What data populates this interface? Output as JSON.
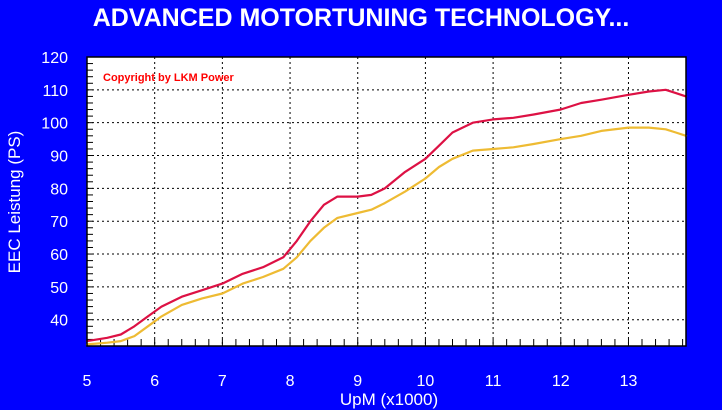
{
  "chart_data": {
    "type": "line",
    "title": "ADVANCED MOTORTUNING TECHNOLOGY...",
    "annotation": "Copyright by LKM Power",
    "xlabel": "UpM (x1000)",
    "ylabel": "EEC Leistung (PS)",
    "xlim": [
      5,
      13.85
    ],
    "ylim": [
      32,
      120
    ],
    "x_ticks": [
      5,
      6,
      7,
      8,
      9,
      10,
      11,
      12,
      13
    ],
    "y_ticks": [
      40,
      50,
      60,
      70,
      80,
      90,
      100,
      110,
      120
    ],
    "grid": true,
    "background": "#FFFFFF",
    "series": [
      {
        "color": "#DD1144",
        "points": [
          [
            5.0,
            33.5
          ],
          [
            5.3,
            34.5
          ],
          [
            5.5,
            35.5
          ],
          [
            5.7,
            38.0
          ],
          [
            5.9,
            41.0
          ],
          [
            6.1,
            44.0
          ],
          [
            6.4,
            47.0
          ],
          [
            6.7,
            49.0
          ],
          [
            7.0,
            51.0
          ],
          [
            7.3,
            54.0
          ],
          [
            7.6,
            56.0
          ],
          [
            7.9,
            59.0
          ],
          [
            8.1,
            64.0
          ],
          [
            8.3,
            70.0
          ],
          [
            8.5,
            75.0
          ],
          [
            8.7,
            77.5
          ],
          [
            9.0,
            77.5
          ],
          [
            9.2,
            78.0
          ],
          [
            9.4,
            80.0
          ],
          [
            9.7,
            85.0
          ],
          [
            10.0,
            89.0
          ],
          [
            10.2,
            93.0
          ],
          [
            10.4,
            97.0
          ],
          [
            10.7,
            100.0
          ],
          [
            11.0,
            101.0
          ],
          [
            11.3,
            101.5
          ],
          [
            11.6,
            102.5
          ],
          [
            12.0,
            104.0
          ],
          [
            12.3,
            106.0
          ],
          [
            12.6,
            107.0
          ],
          [
            13.0,
            108.5
          ],
          [
            13.3,
            109.5
          ],
          [
            13.55,
            110.0
          ],
          [
            13.7,
            109.0
          ],
          [
            13.85,
            108.0
          ]
        ]
      },
      {
        "color": "#EEBB33",
        "points": [
          [
            5.0,
            32.5
          ],
          [
            5.3,
            33.0
          ],
          [
            5.5,
            33.5
          ],
          [
            5.7,
            35.0
          ],
          [
            5.9,
            38.0
          ],
          [
            6.1,
            41.0
          ],
          [
            6.4,
            44.5
          ],
          [
            6.7,
            46.5
          ],
          [
            7.0,
            48.0
          ],
          [
            7.3,
            51.0
          ],
          [
            7.6,
            53.0
          ],
          [
            7.9,
            55.5
          ],
          [
            8.1,
            59.0
          ],
          [
            8.3,
            64.0
          ],
          [
            8.5,
            68.0
          ],
          [
            8.7,
            71.0
          ],
          [
            9.0,
            72.5
          ],
          [
            9.2,
            73.5
          ],
          [
            9.4,
            75.5
          ],
          [
            9.7,
            79.0
          ],
          [
            10.0,
            83.0
          ],
          [
            10.2,
            86.5
          ],
          [
            10.4,
            89.0
          ],
          [
            10.7,
            91.5
          ],
          [
            11.0,
            92.0
          ],
          [
            11.3,
            92.5
          ],
          [
            11.6,
            93.5
          ],
          [
            12.0,
            95.0
          ],
          [
            12.3,
            96.0
          ],
          [
            12.6,
            97.5
          ],
          [
            13.0,
            98.5
          ],
          [
            13.3,
            98.5
          ],
          [
            13.55,
            98.0
          ],
          [
            13.7,
            97.0
          ],
          [
            13.85,
            96.0
          ]
        ]
      }
    ]
  }
}
